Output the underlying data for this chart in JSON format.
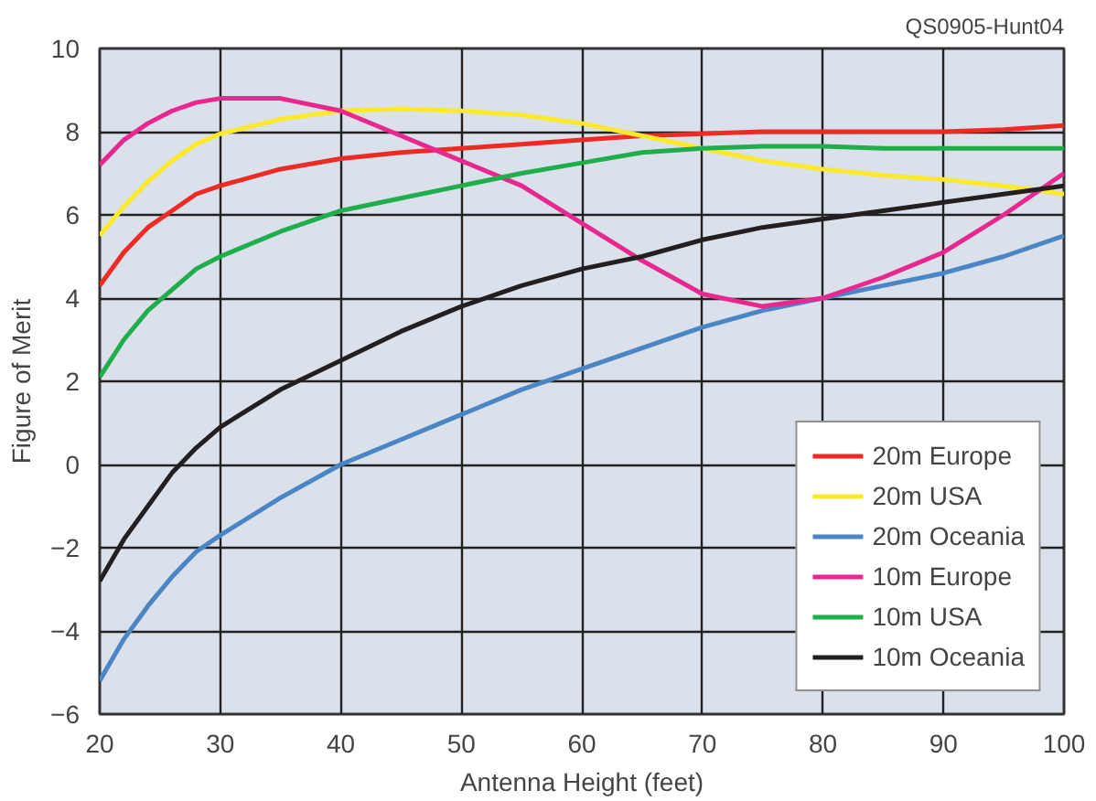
{
  "chart_data": {
    "type": "line",
    "xlabel": "Antenna Height (feet)",
    "ylabel": "Figure of Merit",
    "annotations": [
      "QS0905-Hunt04"
    ],
    "x": [
      20,
      22,
      24,
      26,
      28,
      30,
      35,
      40,
      45,
      50,
      55,
      60,
      65,
      70,
      75,
      80,
      85,
      90,
      95,
      100
    ],
    "series": [
      {
        "name": "20m Europe",
        "color": "#ee2a24",
        "values": [
          4.3,
          5.1,
          5.7,
          6.1,
          6.5,
          6.7,
          7.1,
          7.35,
          7.5,
          7.6,
          7.7,
          7.8,
          7.9,
          7.95,
          8.0,
          8.0,
          8.0,
          8.0,
          8.05,
          8.15
        ]
      },
      {
        "name": "20m USA",
        "color": "#fde92b",
        "values": [
          5.5,
          6.2,
          6.8,
          7.3,
          7.7,
          7.95,
          8.3,
          8.5,
          8.55,
          8.5,
          8.4,
          8.2,
          7.9,
          7.6,
          7.3,
          7.1,
          6.95,
          6.85,
          6.7,
          6.5
        ]
      },
      {
        "name": "20m Oceania",
        "color": "#4a86c6",
        "values": [
          -5.2,
          -4.2,
          -3.4,
          -2.7,
          -2.1,
          -1.7,
          -0.8,
          0.0,
          0.6,
          1.2,
          1.8,
          2.3,
          2.8,
          3.3,
          3.7,
          4.0,
          4.3,
          4.6,
          5.0,
          5.5
        ]
      },
      {
        "name": "10m Europe",
        "color": "#e8288f",
        "values": [
          7.2,
          7.8,
          8.2,
          8.5,
          8.7,
          8.8,
          8.8,
          8.5,
          7.9,
          7.3,
          6.7,
          5.8,
          4.9,
          4.1,
          3.8,
          4.0,
          4.5,
          5.1,
          6.0,
          7.0
        ]
      },
      {
        "name": "10m USA",
        "color": "#1fae4b",
        "values": [
          2.1,
          3.0,
          3.7,
          4.2,
          4.7,
          5.0,
          5.6,
          6.1,
          6.4,
          6.7,
          7.0,
          7.25,
          7.5,
          7.6,
          7.65,
          7.65,
          7.6,
          7.6,
          7.6,
          7.6
        ]
      },
      {
        "name": "10m Oceania",
        "color": "#231f20",
        "values": [
          -2.8,
          -1.8,
          -1.0,
          -0.2,
          0.4,
          0.9,
          1.8,
          2.5,
          3.2,
          3.8,
          4.3,
          4.7,
          5.0,
          5.4,
          5.7,
          5.9,
          6.1,
          6.3,
          6.5,
          6.7
        ]
      }
    ],
    "xlim": [
      20,
      100
    ],
    "xticks": [
      20,
      30,
      40,
      50,
      60,
      70,
      80,
      90,
      100
    ],
    "ylim": [
      -6,
      10
    ],
    "yticks": [
      -6,
      -4,
      -2,
      0,
      2,
      4,
      6,
      8,
      10
    ],
    "grid": true,
    "legend": "bottom right",
    "line_style": "solid",
    "marker": "none"
  }
}
